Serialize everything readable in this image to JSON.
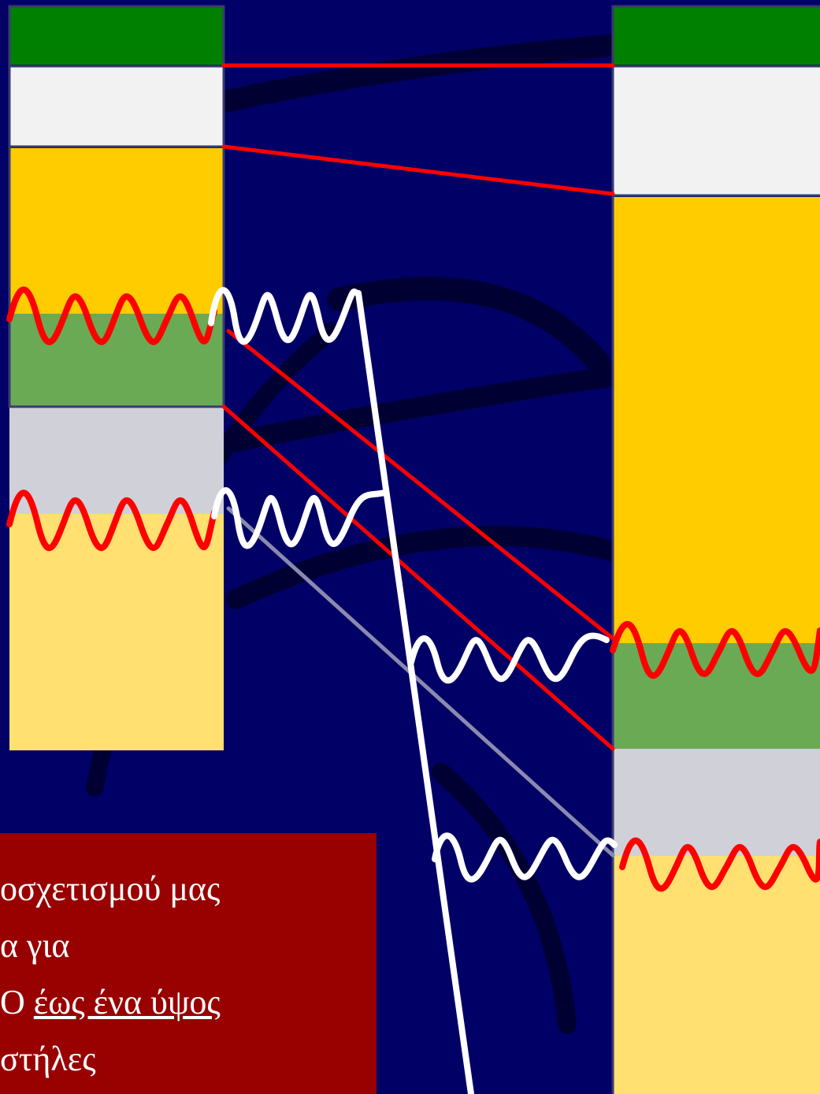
{
  "diagram": {
    "colors": {
      "background": "#000066",
      "swirl": "#000033",
      "dark_green": "#008000",
      "white_block": "#f2f2f2",
      "gold": "#ffcc00",
      "light_green": "#6aaa55",
      "light_gray": "#d0d0d8",
      "pale_yellow": "#ffe070",
      "red_line": "#ff0000",
      "white_line": "#ffffff",
      "gray_line": "#8a8ab0",
      "caption_bg": "#990000"
    }
  },
  "caption": {
    "line1": "οσχετισμού μας",
    "line2": "α για",
    "line3_prefix": "Ο ",
    "line3_underlined": "έως ένα ύψος",
    "line4": "στήλες"
  }
}
